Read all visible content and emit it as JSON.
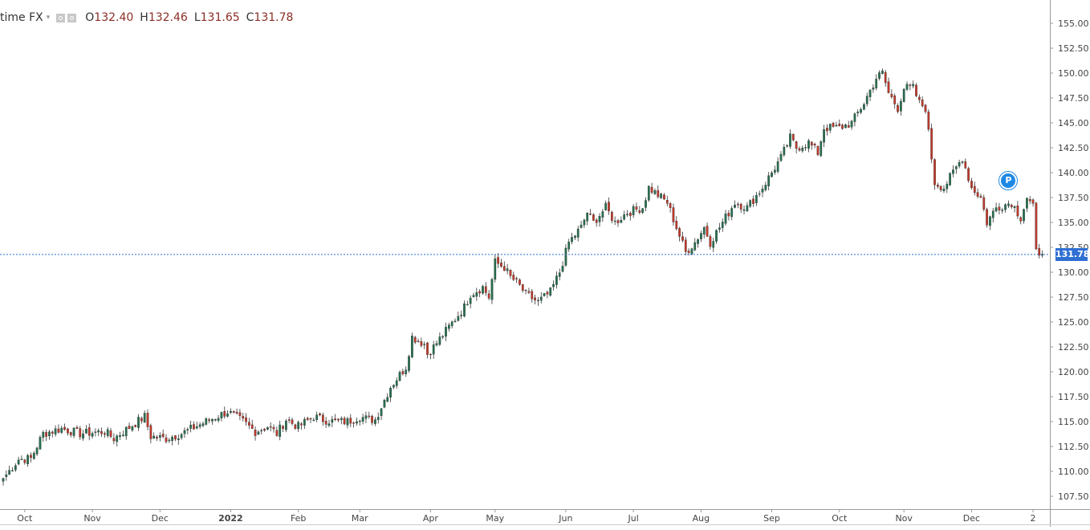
{
  "legend": {
    "symbol": "time FX",
    "caret": "▾",
    "open_label": "O",
    "open": "132.40",
    "high_label": "H",
    "high": "132.46",
    "low_label": "L",
    "low": "131.65",
    "close_label": "C",
    "close": "131.78"
  },
  "last_price_label": "131.78",
  "marker_label": "P",
  "colors": {
    "up": "#26704f",
    "down": "#c0392b",
    "wick": "#333333",
    "price_line": "#2f6fd3",
    "tag_bg": "#2f6fd3",
    "marker": "#1e88e5"
  },
  "chart_data": {
    "type": "candlestick",
    "y_axis": {
      "position": "right",
      "min": 106,
      "max": 156,
      "ticks": [
        "155.00",
        "152.50",
        "150.00",
        "147.50",
        "145.00",
        "142.50",
        "140.00",
        "137.50",
        "135.00",
        "132.50",
        "130.00",
        "127.50",
        "125.00",
        "122.50",
        "120.00",
        "117.50",
        "115.00",
        "112.50",
        "110.00",
        "107.50"
      ]
    },
    "x_axis": {
      "labels": [
        {
          "label": "Oct",
          "index": 7
        },
        {
          "label": "Nov",
          "index": 29
        },
        {
          "label": "Dec",
          "index": 51
        },
        {
          "label": "2022",
          "index": 74,
          "bold": true
        },
        {
          "label": "Feb",
          "index": 96
        },
        {
          "label": "Mar",
          "index": 116
        },
        {
          "label": "Apr",
          "index": 139
        },
        {
          "label": "May",
          "index": 160
        },
        {
          "label": "Jun",
          "index": 183
        },
        {
          "label": "Jul",
          "index": 205
        },
        {
          "label": "Aug",
          "index": 227
        },
        {
          "label": "Sep",
          "index": 250
        },
        {
          "label": "Oct",
          "index": 272
        },
        {
          "label": "Nov",
          "index": 293
        },
        {
          "label": "Dec",
          "index": 315
        },
        {
          "label": "2",
          "index": 335
        }
      ]
    },
    "last_close": 131.78,
    "anchors": [
      [
        0,
        109.3
      ],
      [
        5,
        111.2
      ],
      [
        9,
        111.3
      ],
      [
        13,
        113.8
      ],
      [
        19,
        114.3
      ],
      [
        25,
        113.8
      ],
      [
        33,
        114.0
      ],
      [
        36,
        113.3
      ],
      [
        40,
        114.2
      ],
      [
        46,
        115.5
      ],
      [
        48,
        113.5
      ],
      [
        53,
        113.3
      ],
      [
        58,
        113.8
      ],
      [
        66,
        115.0
      ],
      [
        73,
        116.0
      ],
      [
        78,
        115.0
      ],
      [
        82,
        114.0
      ],
      [
        86,
        114.5
      ],
      [
        89,
        113.8
      ],
      [
        92,
        115.2
      ],
      [
        96,
        114.5
      ],
      [
        101,
        115.5
      ],
      [
        104,
        115.2
      ],
      [
        108,
        115.0
      ],
      [
        112,
        115.0
      ],
      [
        116,
        115.5
      ],
      [
        119,
        115.2
      ],
      [
        121,
        115.2
      ],
      [
        123,
        116.5
      ],
      [
        126,
        118.5
      ],
      [
        131,
        120.5
      ],
      [
        133,
        123.5
      ],
      [
        137,
        122.8
      ],
      [
        138,
        121.8
      ],
      [
        140,
        122.5
      ],
      [
        145,
        124.5
      ],
      [
        150,
        126.5
      ],
      [
        152,
        127.8
      ],
      [
        156,
        128.5
      ],
      [
        158,
        127.5
      ],
      [
        160,
        131.0
      ],
      [
        163,
        130.5
      ],
      [
        165,
        129.5
      ],
      [
        167,
        129.0
      ],
      [
        170,
        127.8
      ],
      [
        174,
        127.0
      ],
      [
        178,
        128.0
      ],
      [
        181,
        130.0
      ],
      [
        184,
        133.0
      ],
      [
        188,
        134.5
      ],
      [
        190,
        136.0
      ],
      [
        192,
        135.0
      ],
      [
        196,
        136.5
      ],
      [
        199,
        135.0
      ],
      [
        203,
        136.0
      ],
      [
        208,
        136.5
      ],
      [
        210,
        138.5
      ],
      [
        214,
        137.5
      ],
      [
        216,
        137.0
      ],
      [
        219,
        134.5
      ],
      [
        222,
        132.0
      ],
      [
        225,
        133.0
      ],
      [
        228,
        134.5
      ],
      [
        230,
        133.0
      ],
      [
        233,
        134.5
      ],
      [
        238,
        137.0
      ],
      [
        242,
        136.5
      ],
      [
        247,
        138.5
      ],
      [
        253,
        141.5
      ],
      [
        256,
        143.5
      ],
      [
        258,
        142.5
      ],
      [
        262,
        143.0
      ],
      [
        265,
        142.0
      ],
      [
        267,
        144.5
      ],
      [
        272,
        144.5
      ],
      [
        276,
        145.0
      ],
      [
        280,
        147.0
      ],
      [
        284,
        149.5
      ],
      [
        286,
        150.0
      ],
      [
        288,
        148.0
      ],
      [
        291,
        146.5
      ],
      [
        293,
        148.5
      ],
      [
        296,
        148.5
      ],
      [
        298,
        147.0
      ],
      [
        300,
        146.5
      ],
      [
        303,
        139.0
      ],
      [
        306,
        138.5
      ],
      [
        310,
        140.5
      ],
      [
        312,
        141.5
      ],
      [
        315,
        138.5
      ],
      [
        318,
        137.5
      ],
      [
        320,
        135.0
      ],
      [
        323,
        136.5
      ],
      [
        328,
        137.0
      ],
      [
        331,
        135.5
      ],
      [
        333,
        137.5
      ],
      [
        335,
        136.5
      ],
      [
        336,
        132.0
      ],
      [
        338,
        132.0
      ]
    ],
    "total_bars": 339,
    "marker": {
      "index": 327,
      "value": 139.2,
      "label": "P"
    }
  }
}
